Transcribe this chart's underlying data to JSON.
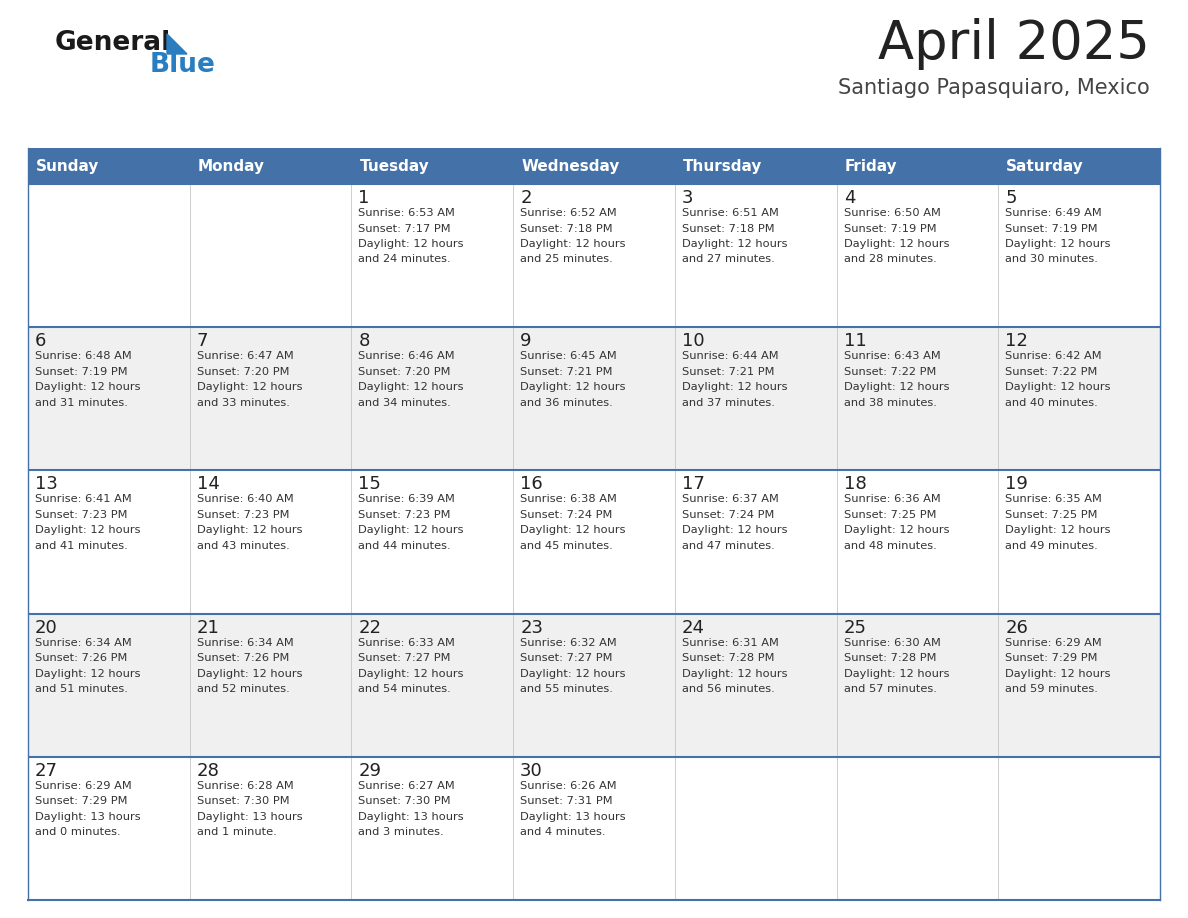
{
  "title": "April 2025",
  "subtitle": "Santiago Papasquiaro, Mexico",
  "header_color": "#4472a8",
  "header_text_color": "#ffffff",
  "weekdays": [
    "Sunday",
    "Monday",
    "Tuesday",
    "Wednesday",
    "Thursday",
    "Friday",
    "Saturday"
  ],
  "bg_color": "#ffffff",
  "alt_row_color": "#f0f0f0",
  "cell_border_color": "#4472a8",
  "title_color": "#222222",
  "subtitle_color": "#444444",
  "day_number_color": "#222222",
  "cell_text_color": "#333333",
  "calendar": [
    [
      {
        "day": "",
        "sunrise": "",
        "sunset": "",
        "daylight": ""
      },
      {
        "day": "",
        "sunrise": "",
        "sunset": "",
        "daylight": ""
      },
      {
        "day": "1",
        "sunrise": "Sunrise: 6:53 AM",
        "sunset": "Sunset: 7:17 PM",
        "daylight": "Daylight: 12 hours\nand 24 minutes."
      },
      {
        "day": "2",
        "sunrise": "Sunrise: 6:52 AM",
        "sunset": "Sunset: 7:18 PM",
        "daylight": "Daylight: 12 hours\nand 25 minutes."
      },
      {
        "day": "3",
        "sunrise": "Sunrise: 6:51 AM",
        "sunset": "Sunset: 7:18 PM",
        "daylight": "Daylight: 12 hours\nand 27 minutes."
      },
      {
        "day": "4",
        "sunrise": "Sunrise: 6:50 AM",
        "sunset": "Sunset: 7:19 PM",
        "daylight": "Daylight: 12 hours\nand 28 minutes."
      },
      {
        "day": "5",
        "sunrise": "Sunrise: 6:49 AM",
        "sunset": "Sunset: 7:19 PM",
        "daylight": "Daylight: 12 hours\nand 30 minutes."
      }
    ],
    [
      {
        "day": "6",
        "sunrise": "Sunrise: 6:48 AM",
        "sunset": "Sunset: 7:19 PM",
        "daylight": "Daylight: 12 hours\nand 31 minutes."
      },
      {
        "day": "7",
        "sunrise": "Sunrise: 6:47 AM",
        "sunset": "Sunset: 7:20 PM",
        "daylight": "Daylight: 12 hours\nand 33 minutes."
      },
      {
        "day": "8",
        "sunrise": "Sunrise: 6:46 AM",
        "sunset": "Sunset: 7:20 PM",
        "daylight": "Daylight: 12 hours\nand 34 minutes."
      },
      {
        "day": "9",
        "sunrise": "Sunrise: 6:45 AM",
        "sunset": "Sunset: 7:21 PM",
        "daylight": "Daylight: 12 hours\nand 36 minutes."
      },
      {
        "day": "10",
        "sunrise": "Sunrise: 6:44 AM",
        "sunset": "Sunset: 7:21 PM",
        "daylight": "Daylight: 12 hours\nand 37 minutes."
      },
      {
        "day": "11",
        "sunrise": "Sunrise: 6:43 AM",
        "sunset": "Sunset: 7:22 PM",
        "daylight": "Daylight: 12 hours\nand 38 minutes."
      },
      {
        "day": "12",
        "sunrise": "Sunrise: 6:42 AM",
        "sunset": "Sunset: 7:22 PM",
        "daylight": "Daylight: 12 hours\nand 40 minutes."
      }
    ],
    [
      {
        "day": "13",
        "sunrise": "Sunrise: 6:41 AM",
        "sunset": "Sunset: 7:23 PM",
        "daylight": "Daylight: 12 hours\nand 41 minutes."
      },
      {
        "day": "14",
        "sunrise": "Sunrise: 6:40 AM",
        "sunset": "Sunset: 7:23 PM",
        "daylight": "Daylight: 12 hours\nand 43 minutes."
      },
      {
        "day": "15",
        "sunrise": "Sunrise: 6:39 AM",
        "sunset": "Sunset: 7:23 PM",
        "daylight": "Daylight: 12 hours\nand 44 minutes."
      },
      {
        "day": "16",
        "sunrise": "Sunrise: 6:38 AM",
        "sunset": "Sunset: 7:24 PM",
        "daylight": "Daylight: 12 hours\nand 45 minutes."
      },
      {
        "day": "17",
        "sunrise": "Sunrise: 6:37 AM",
        "sunset": "Sunset: 7:24 PM",
        "daylight": "Daylight: 12 hours\nand 47 minutes."
      },
      {
        "day": "18",
        "sunrise": "Sunrise: 6:36 AM",
        "sunset": "Sunset: 7:25 PM",
        "daylight": "Daylight: 12 hours\nand 48 minutes."
      },
      {
        "day": "19",
        "sunrise": "Sunrise: 6:35 AM",
        "sunset": "Sunset: 7:25 PM",
        "daylight": "Daylight: 12 hours\nand 49 minutes."
      }
    ],
    [
      {
        "day": "20",
        "sunrise": "Sunrise: 6:34 AM",
        "sunset": "Sunset: 7:26 PM",
        "daylight": "Daylight: 12 hours\nand 51 minutes."
      },
      {
        "day": "21",
        "sunrise": "Sunrise: 6:34 AM",
        "sunset": "Sunset: 7:26 PM",
        "daylight": "Daylight: 12 hours\nand 52 minutes."
      },
      {
        "day": "22",
        "sunrise": "Sunrise: 6:33 AM",
        "sunset": "Sunset: 7:27 PM",
        "daylight": "Daylight: 12 hours\nand 54 minutes."
      },
      {
        "day": "23",
        "sunrise": "Sunrise: 6:32 AM",
        "sunset": "Sunset: 7:27 PM",
        "daylight": "Daylight: 12 hours\nand 55 minutes."
      },
      {
        "day": "24",
        "sunrise": "Sunrise: 6:31 AM",
        "sunset": "Sunset: 7:28 PM",
        "daylight": "Daylight: 12 hours\nand 56 minutes."
      },
      {
        "day": "25",
        "sunrise": "Sunrise: 6:30 AM",
        "sunset": "Sunset: 7:28 PM",
        "daylight": "Daylight: 12 hours\nand 57 minutes."
      },
      {
        "day": "26",
        "sunrise": "Sunrise: 6:29 AM",
        "sunset": "Sunset: 7:29 PM",
        "daylight": "Daylight: 12 hours\nand 59 minutes."
      }
    ],
    [
      {
        "day": "27",
        "sunrise": "Sunrise: 6:29 AM",
        "sunset": "Sunset: 7:29 PM",
        "daylight": "Daylight: 13 hours\nand 0 minutes."
      },
      {
        "day": "28",
        "sunrise": "Sunrise: 6:28 AM",
        "sunset": "Sunset: 7:30 PM",
        "daylight": "Daylight: 13 hours\nand 1 minute."
      },
      {
        "day": "29",
        "sunrise": "Sunrise: 6:27 AM",
        "sunset": "Sunset: 7:30 PM",
        "daylight": "Daylight: 13 hours\nand 3 minutes."
      },
      {
        "day": "30",
        "sunrise": "Sunrise: 6:26 AM",
        "sunset": "Sunset: 7:31 PM",
        "daylight": "Daylight: 13 hours\nand 4 minutes."
      },
      {
        "day": "",
        "sunrise": "",
        "sunset": "",
        "daylight": ""
      },
      {
        "day": "",
        "sunrise": "",
        "sunset": "",
        "daylight": ""
      },
      {
        "day": "",
        "sunrise": "",
        "sunset": "",
        "daylight": ""
      }
    ]
  ],
  "logo_text1": "General",
  "logo_text2": "Blue",
  "fig_width": 11.88,
  "fig_height": 9.18,
  "dpi": 100
}
